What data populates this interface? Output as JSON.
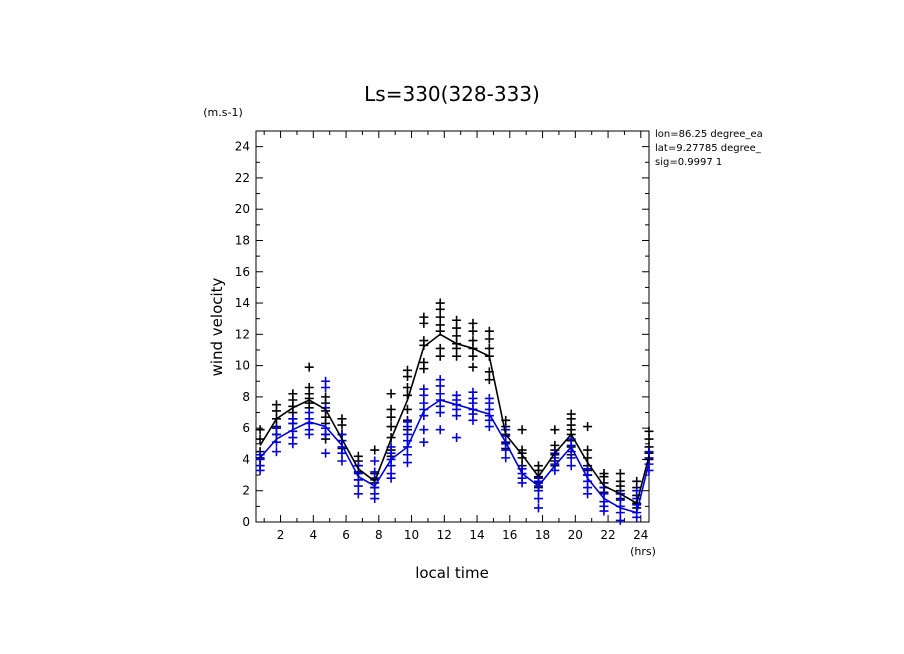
{
  "chart_data": {
    "type": "line",
    "title": "Ls=330(328-333)",
    "xlabel": "local time",
    "ylabel": "wind velocity",
    "x_unit": "(hrs)",
    "y_unit": "(m.s-1)",
    "xlim": [
      0.5,
      24.5
    ],
    "ylim": [
      0,
      25
    ],
    "x_ticks": [
      2,
      4,
      6,
      8,
      10,
      12,
      14,
      16,
      18,
      20,
      22,
      24
    ],
    "y_ticks": [
      0,
      2,
      4,
      6,
      8,
      10,
      12,
      14,
      16,
      18,
      20,
      22,
      24
    ],
    "grid": false,
    "annotations": [
      "lon=86.25 degree_ea",
      "lat=9.27785 degree_",
      "sig=0.9997 1"
    ],
    "x": [
      0.75,
      1.75,
      2.75,
      3.75,
      4.75,
      5.75,
      6.75,
      7.75,
      8.75,
      9.75,
      10.75,
      11.75,
      12.75,
      13.75,
      14.75,
      15.75,
      16.75,
      17.75,
      18.75,
      19.75,
      20.75,
      21.75,
      22.75,
      23.75,
      24.5
    ],
    "series": [
      {
        "color": "#000000",
        "values": [
          4.9,
          6.6,
          7.3,
          7.8,
          7.2,
          5.3,
          3.4,
          2.6,
          5.3,
          7.8,
          11.2,
          12.0,
          11.4,
          11.1,
          10.6,
          5.6,
          4.3,
          2.9,
          4.4,
          5.6,
          3.8,
          2.3,
          1.8,
          1.2,
          4.2
        ],
        "scatter": [
          [
            5.9,
            5.3,
            4.5,
            4.1,
            3.6
          ],
          [
            7.5,
            7.1,
            6.6,
            6.1,
            5.6
          ],
          [
            8.2,
            7.8,
            7.4,
            7.0,
            6.6,
            6.3
          ],
          [
            9.9,
            8.6,
            8.2,
            7.9,
            7.6,
            7.3
          ],
          [
            8.0,
            7.6,
            7.1,
            6.7,
            6.3,
            5.6,
            5.3
          ],
          [
            6.6,
            6.2,
            5.6,
            5.2,
            4.7
          ],
          [
            4.2,
            3.9,
            3.6,
            3.2,
            2.7
          ],
          [
            4.6,
            3.1,
            2.8,
            2.5,
            2.2
          ],
          [
            8.2,
            7.2,
            6.7,
            6.1,
            5.4,
            4.6,
            4.2
          ],
          [
            9.7,
            9.3,
            8.6,
            8.1,
            7.2,
            6.5,
            5.9
          ],
          [
            13.1,
            12.7,
            11.6,
            11.3,
            10.2,
            9.8
          ],
          [
            14.0,
            13.6,
            13.1,
            12.6,
            12.2,
            11.1,
            10.6
          ],
          [
            12.9,
            12.4,
            11.9,
            11.4,
            11.1,
            10.6
          ],
          [
            12.7,
            12.2,
            11.6,
            11.1,
            10.6,
            9.9
          ],
          [
            12.2,
            11.7,
            11.1,
            10.6,
            9.6,
            9.1
          ],
          [
            6.5,
            6.1,
            5.6,
            5.1,
            4.7
          ],
          [
            5.9,
            4.6,
            4.4,
            4.1,
            3.6
          ],
          [
            3.6,
            3.3,
            2.9,
            2.5,
            2.2
          ],
          [
            5.9,
            4.9,
            4.6,
            4.3,
            3.9,
            3.6
          ],
          [
            6.9,
            6.6,
            6.2,
            5.9,
            5.6,
            5.2,
            4.8,
            4.3
          ],
          [
            6.1,
            4.6,
            4.1,
            3.6,
            3.3,
            3.0
          ],
          [
            3.1,
            2.9,
            2.5,
            2.2,
            1.9
          ],
          [
            3.1,
            2.6,
            2.3,
            2.0,
            1.8,
            1.5
          ],
          [
            2.6,
            2.2,
            1.7,
            1.2,
            0.9
          ],
          [
            5.8,
            5.3,
            4.8,
            4.4,
            4.0
          ]
        ]
      },
      {
        "color": "#0000dd",
        "values": [
          4.1,
          5.3,
          5.9,
          6.4,
          6.1,
          4.9,
          2.9,
          2.3,
          4.0,
          4.8,
          7.1,
          7.8,
          7.5,
          7.2,
          6.9,
          5.1,
          3.1,
          2.3,
          3.6,
          4.8,
          2.8,
          1.5,
          0.9,
          0.6,
          3.8
        ],
        "scatter": [
          [
            4.3,
            4.0,
            3.6,
            3.3
          ],
          [
            6.0,
            5.6,
            5.1,
            4.5
          ],
          [
            6.6,
            6.3,
            5.8,
            5.4,
            5.0
          ],
          [
            7.0,
            6.6,
            6.3,
            5.9,
            5.6
          ],
          [
            9.0,
            8.6,
            7.3,
            6.0,
            5.6,
            4.4
          ],
          [
            5.6,
            5.2,
            4.8,
            4.4,
            3.9
          ],
          [
            3.6,
            3.1,
            2.7,
            2.3,
            1.8
          ],
          [
            3.9,
            3.2,
            2.7,
            2.2,
            1.8,
            1.5
          ],
          [
            4.8,
            4.4,
            4.0,
            3.6,
            3.1,
            2.8
          ],
          [
            6.4,
            6.1,
            5.6,
            5.2,
            4.8,
            4.3,
            3.8
          ],
          [
            8.5,
            8.1,
            7.6,
            7.2,
            6.8,
            5.9,
            5.1
          ],
          [
            9.1,
            8.7,
            8.2,
            7.8,
            7.4,
            7.0,
            5.9
          ],
          [
            8.1,
            7.8,
            7.5,
            7.2,
            6.8,
            5.4
          ],
          [
            8.3,
            7.9,
            7.6,
            7.2,
            6.9,
            6.5
          ],
          [
            7.9,
            7.6,
            7.2,
            6.8,
            6.5,
            6.1
          ],
          [
            5.9,
            5.5,
            5.0,
            4.6,
            4.1
          ],
          [
            3.4,
            3.1,
            2.8,
            2.5
          ],
          [
            2.8,
            2.6,
            2.3,
            2.0,
            1.5,
            0.9
          ],
          [
            4.4,
            4.1,
            3.7,
            3.3
          ],
          [
            5.3,
            4.9,
            4.5,
            4.1,
            3.6
          ],
          [
            3.4,
            3.0,
            2.6,
            2.2,
            1.8
          ],
          [
            2.2,
            1.8,
            1.3,
            1.0,
            0.7
          ],
          [
            1.8,
            1.4,
            1.0,
            0.6,
            0.1
          ],
          [
            2.0,
            1.5,
            1.1,
            0.6,
            0.3
          ],
          [
            4.5,
            4.1,
            3.7,
            3.3
          ]
        ]
      }
    ]
  }
}
